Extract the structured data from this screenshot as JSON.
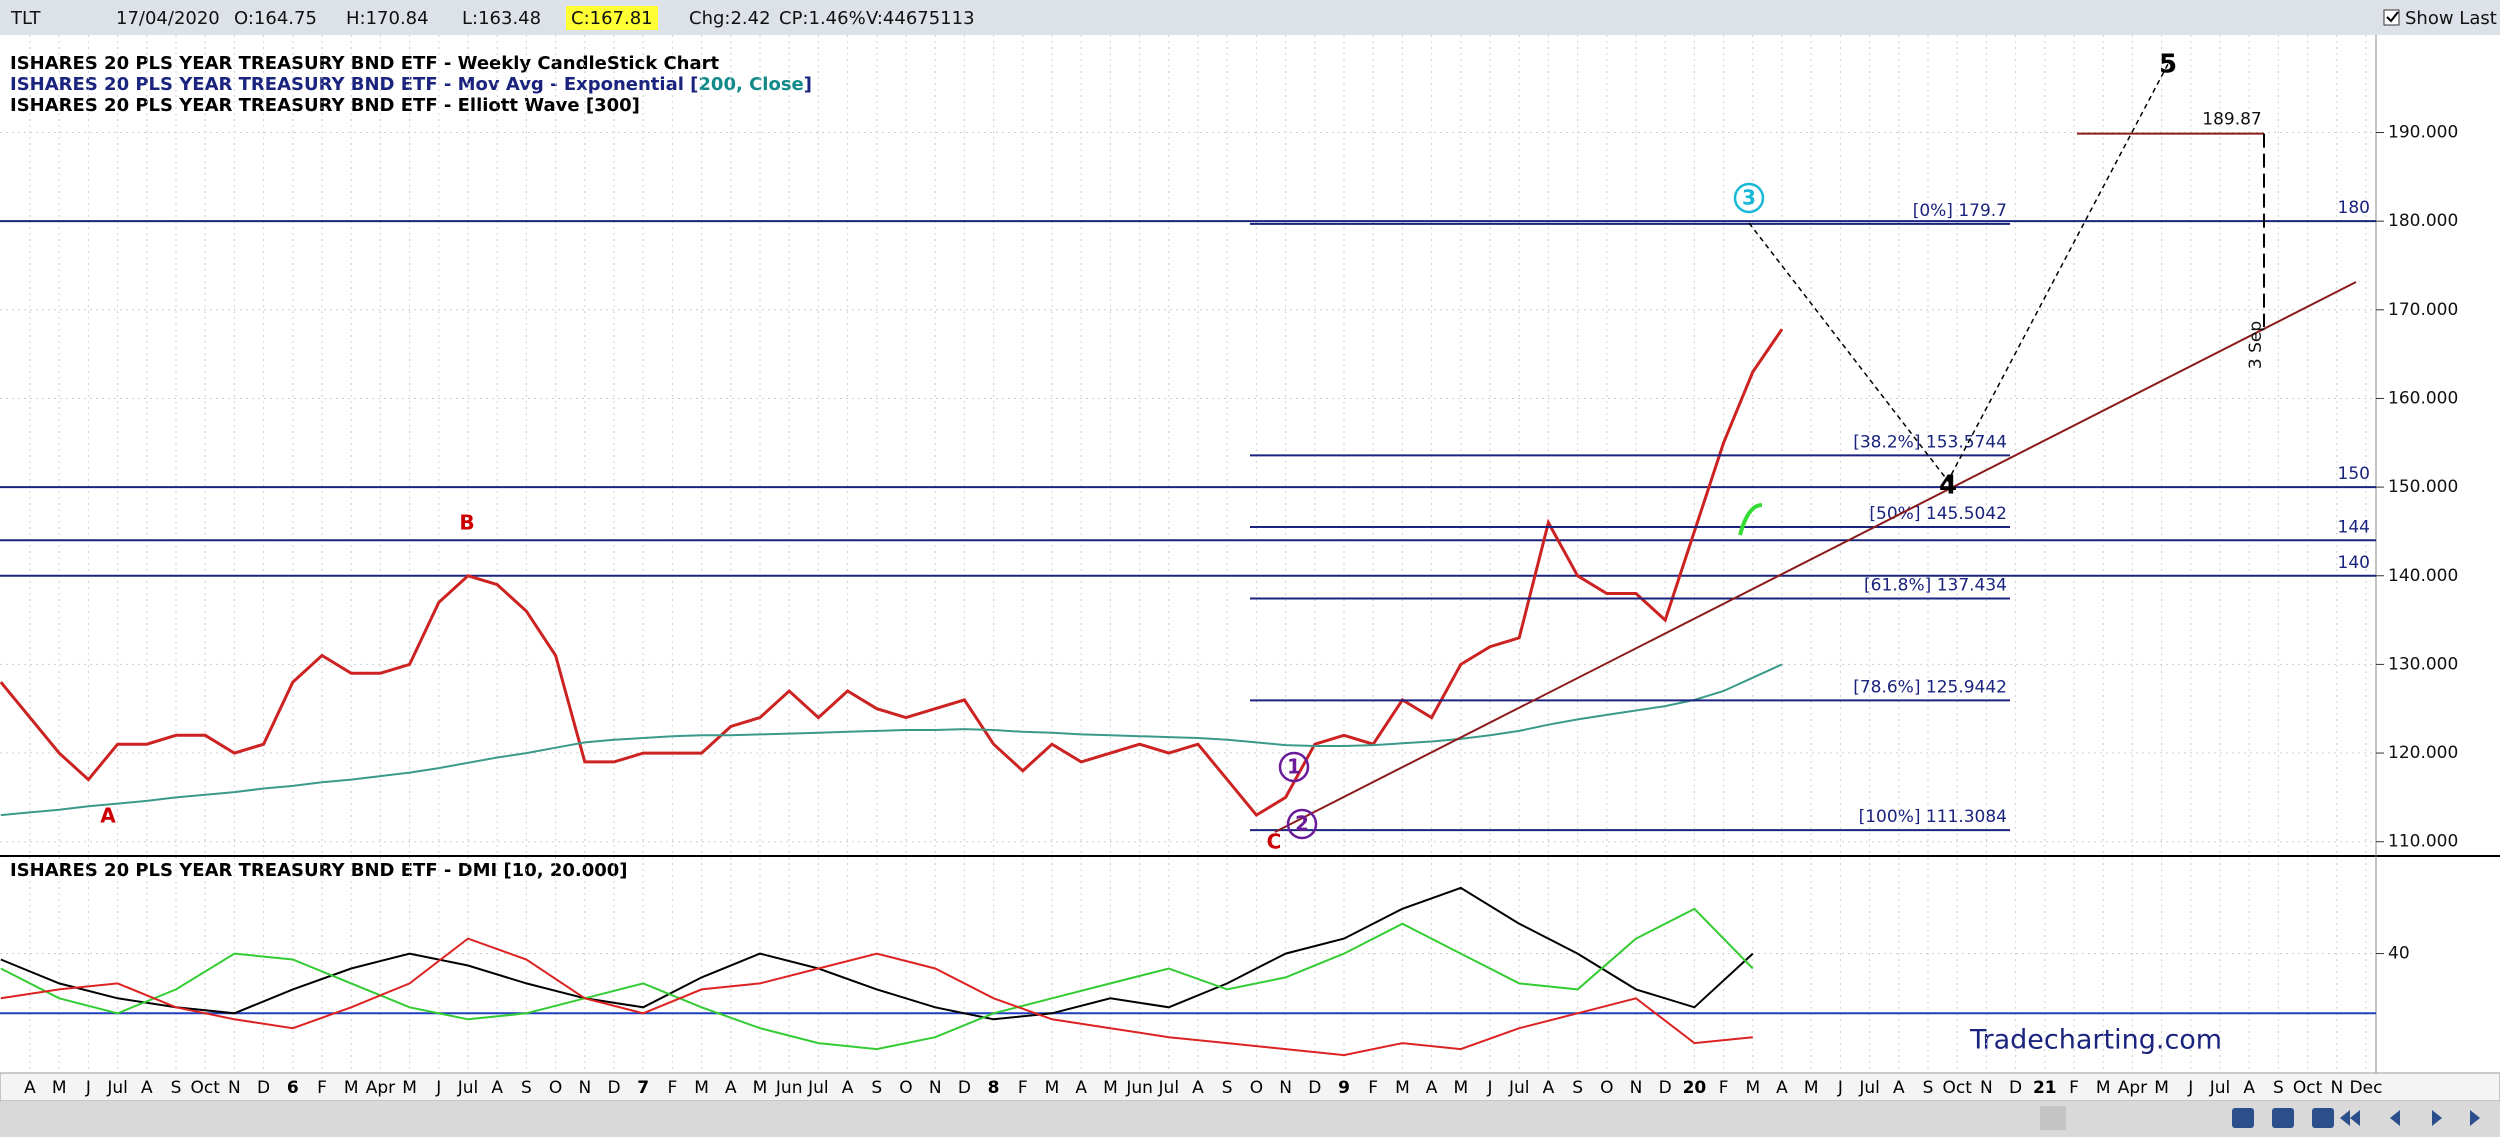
{
  "toolbar": {
    "symbol": "TLT",
    "date": "17/04/2020",
    "open": "O:164.75",
    "high": "H:170.84",
    "low": "L:163.48",
    "close": "C:167.81",
    "change": "Chg:2.42",
    "change_pct": "CP:1.46%",
    "volume": "V:44675113",
    "show_last": "Show Last"
  },
  "chart_data": [
    {
      "type": "line",
      "legend": [
        "ISHARES 20 PLS YEAR TREASURY BND ETF - Weekly CandleStick Chart",
        "ISHARES 20 PLS YEAR TREASURY BND ETF - Mov Avg - Exponential [",
        "200, Close",
        "]",
        "ISHARES 20 PLS YEAR TREASURY BND ETF - Elliott Wave [300]"
      ],
      "series": [
        {
          "color": "#cc2222",
          "values": [
            128,
            124,
            120,
            117,
            121,
            121,
            122,
            122,
            120,
            121,
            128,
            131,
            129,
            129,
            130,
            137,
            140,
            139,
            136,
            131,
            119,
            119,
            120,
            120,
            120,
            123,
            124,
            127,
            124,
            127,
            125,
            124,
            125,
            126,
            121,
            118,
            121,
            119,
            120,
            121,
            120,
            121,
            117,
            113,
            115,
            121,
            122,
            121,
            126,
            124,
            130,
            132,
            133,
            146,
            140,
            138,
            138,
            135,
            145,
            155,
            163,
            167.81
          ]
        },
        {
          "color": "#3a9a8a",
          "values": [
            113,
            113.3,
            113.6,
            114,
            114.3,
            114.6,
            115,
            115.3,
            115.6,
            116,
            116.3,
            116.7,
            117,
            117.4,
            117.8,
            118.3,
            118.9,
            119.5,
            120,
            120.6,
            121.2,
            121.5,
            121.7,
            121.9,
            122,
            122,
            122.1,
            122.2,
            122.3,
            122.4,
            122.5,
            122.6,
            122.6,
            122.7,
            122.6,
            122.4,
            122.3,
            122.1,
            122,
            121.9,
            121.8,
            121.7,
            121.5,
            121.2,
            120.9,
            120.8,
            120.8,
            120.9,
            121.1,
            121.3,
            121.6,
            122,
            122.5,
            123.2,
            123.8,
            124.3,
            124.8,
            125.3,
            126,
            127,
            128.5,
            130
          ]
        }
      ],
      "ylim": [
        108.5,
        201
      ],
      "yticks": [
        {
          "value": 110,
          "label": "110.000"
        },
        {
          "value": 120,
          "label": "120.000"
        },
        {
          "value": 130,
          "label": "130.000"
        },
        {
          "value": 140,
          "label": "140.000"
        },
        {
          "value": 150,
          "label": "150.000"
        },
        {
          "value": 160,
          "label": "160.000"
        },
        {
          "value": 170,
          "label": "170.000"
        },
        {
          "value": 180,
          "label": "180.000"
        },
        {
          "value": 190,
          "label": "190.000"
        }
      ],
      "grid": true,
      "levels": [
        180,
        150,
        144,
        140
      ],
      "fib_levels": [
        {
          "value": 179.7,
          "label": "[0%] 179.7"
        },
        {
          "value": 153.5744,
          "label": "[38.2%] 153.5744"
        },
        {
          "value": 145.5042,
          "label": "[50%] 145.5042"
        },
        {
          "value": 137.434,
          "label": "[61.8%] 137.434"
        },
        {
          "value": 125.9442,
          "label": "[78.6%] 125.9442"
        },
        {
          "value": 111.3084,
          "label": "[100%] 111.3084"
        }
      ],
      "waves": [
        "A",
        "B",
        "C",
        "1",
        "2",
        "3",
        "4",
        "5"
      ],
      "target": 189.87,
      "target_date": "3 Sep",
      "watermark": "Tradecharting.com"
    },
    {
      "type": "line",
      "title": "ISHARES 20 PLS YEAR TREASURY BND ETF - DMI [10, 20.000]",
      "series": [
        {
          "color": "#000000",
          "values": [
            38,
            30,
            25,
            22,
            20,
            28,
            35,
            40,
            36,
            30,
            25,
            22,
            32,
            40,
            35,
            28,
            22,
            18,
            20,
            25,
            22,
            30,
            40,
            45,
            55,
            62,
            50,
            40,
            28,
            22,
            40
          ]
        },
        {
          "color": "#33cc33",
          "values": [
            35,
            25,
            20,
            28,
            40,
            38,
            30,
            22,
            18,
            20,
            25,
            30,
            22,
            15,
            10,
            8,
            12,
            20,
            25,
            30,
            35,
            28,
            32,
            40,
            50,
            40,
            30,
            28,
            45,
            55,
            35
          ]
        },
        {
          "color": "#dd2222",
          "values": [
            25,
            28,
            30,
            22,
            18,
            15,
            22,
            30,
            45,
            38,
            25,
            20,
            28,
            30,
            35,
            40,
            35,
            25,
            18,
            15,
            12,
            10,
            8,
            6,
            10,
            8,
            15,
            20,
            25,
            10,
            12
          ]
        }
      ],
      "ylim": [
        0,
        72
      ],
      "yticks": [
        40
      ],
      "levels": [
        20
      ],
      "grid": true,
      "xlabels": [
        "A",
        "M",
        "J",
        "Jul",
        "A",
        "S",
        "Oct",
        "N",
        "D",
        "6",
        "F",
        "M",
        "Apr",
        "M",
        "J",
        "Jul",
        "A",
        "S",
        "O",
        "N",
        "D",
        "7",
        "F",
        "M",
        "A",
        "M",
        "Jun",
        "Jul",
        "A",
        "S",
        "O",
        "N",
        "D",
        "8",
        "F",
        "M",
        "A",
        "M",
        "Jun",
        "Jul",
        "A",
        "S",
        "O",
        "N",
        "D",
        "9",
        "F",
        "M",
        "A",
        "M",
        "J",
        "Jul",
        "A",
        "S",
        "O",
        "N",
        "D",
        "20",
        "F",
        "M",
        "A",
        "M",
        "J",
        "Jul",
        "A",
        "S",
        "Oct",
        "N",
        "D",
        "21",
        "F",
        "M",
        "Apr",
        "M",
        "J",
        "Jul",
        "A",
        "S",
        "Oct",
        "N",
        "Dec"
      ]
    }
  ]
}
